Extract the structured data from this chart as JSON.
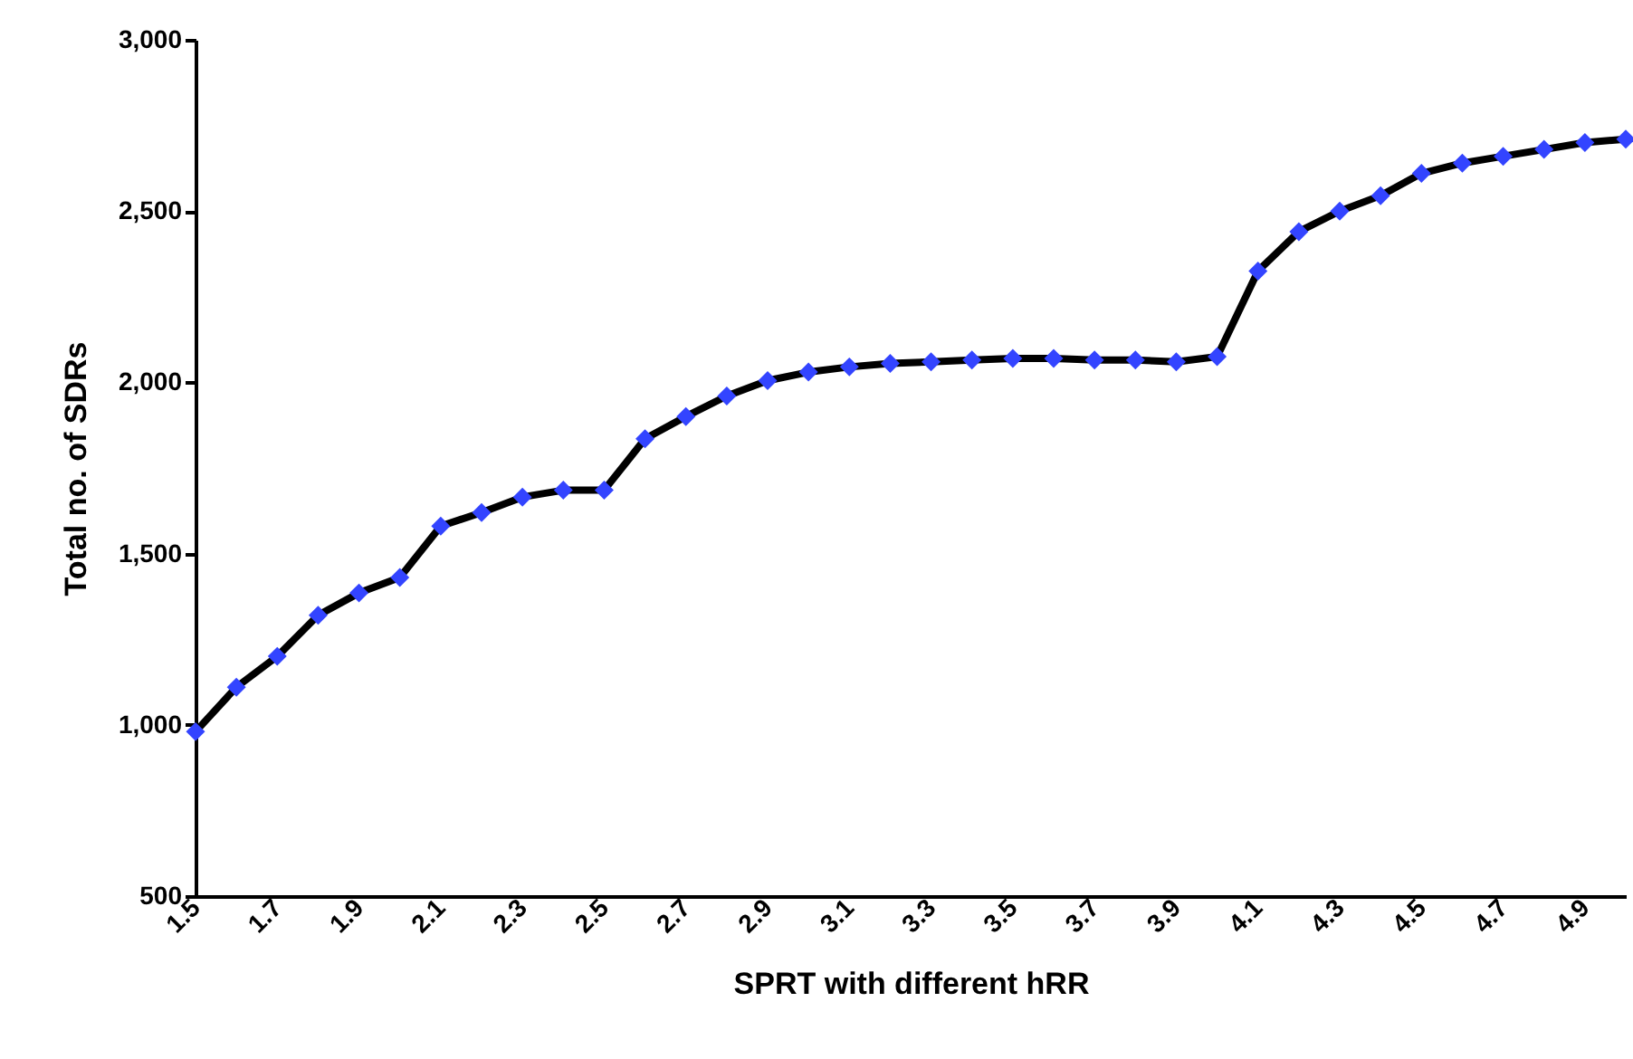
{
  "chart_data": {
    "type": "line",
    "xlabel": "SPRT with different hRR",
    "ylabel": "Total no. of SDRs",
    "categories": [
      "1.5",
      null,
      "1.7",
      null,
      "1.9",
      null,
      "2.1",
      null,
      "2.3",
      null,
      "2.5",
      null,
      "2.7",
      null,
      "2.9",
      null,
      "3.1",
      null,
      "3.3",
      null,
      "3.5",
      null,
      "3.7",
      null,
      "3.9",
      null,
      "4.1",
      null,
      "4.3",
      null,
      "4.5",
      null,
      "4.7",
      null,
      "4.9",
      null
    ],
    "series": [
      {
        "color": "#3344ff",
        "values": [
          980,
          1110,
          1200,
          1320,
          1385,
          1430,
          1580,
          1620,
          1665,
          1685,
          1685,
          1835,
          1900,
          1960,
          2005,
          2030,
          2045,
          2055,
          2060,
          2065,
          2070,
          2070,
          2065,
          2065,
          2060,
          2075,
          2325,
          2440,
          2500,
          2545,
          2610,
          2640,
          2660,
          2680,
          2700,
          2710
        ]
      }
    ],
    "ylim": [
      500,
      3000
    ],
    "yticks": [
      {
        "value": 500,
        "label": "500"
      },
      {
        "value": 1000,
        "label": "1,000"
      },
      {
        "value": 1500,
        "label": "1,500"
      },
      {
        "value": 2000,
        "label": "2,000"
      },
      {
        "value": 2500,
        "label": "2,500"
      },
      {
        "value": 3000,
        "label": "3,000"
      }
    ],
    "marker": "diamond",
    "line_style": "solid"
  }
}
